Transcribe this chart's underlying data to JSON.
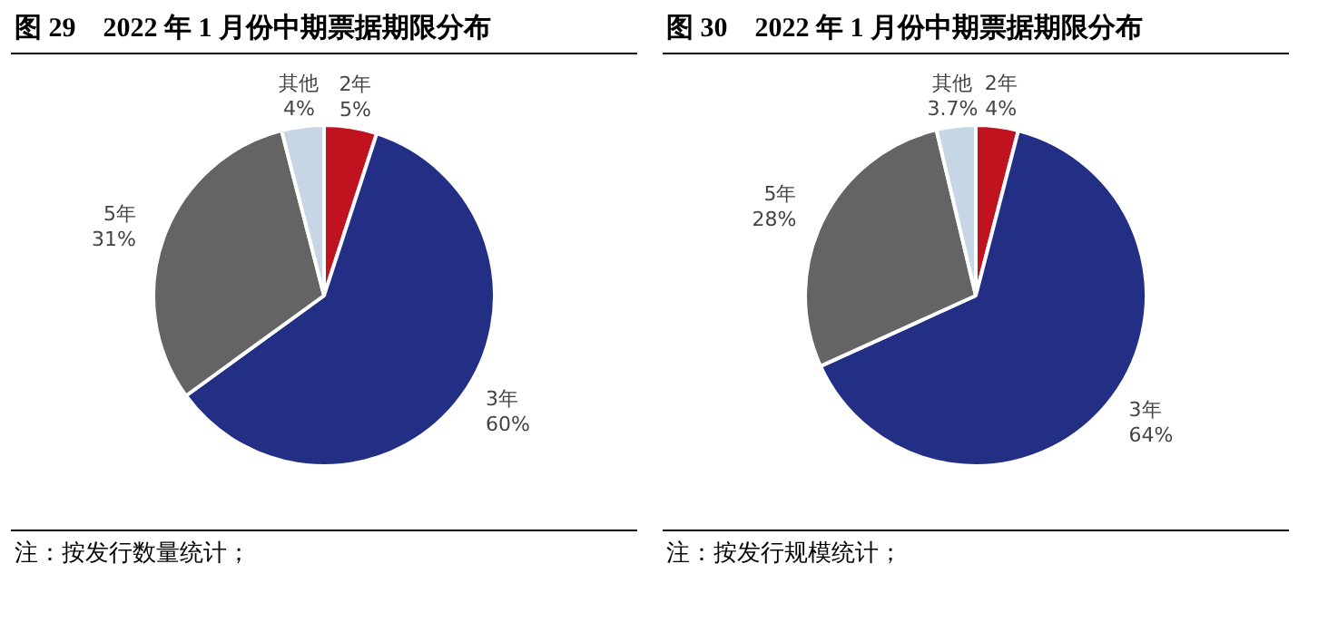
{
  "chart_data": [
    {
      "type": "pie",
      "title": "图 29　2022 年 1 月份中期票据期限分布",
      "categories": [
        "2年",
        "3年",
        "5年",
        "其他"
      ],
      "values": [
        5,
        60,
        31,
        4
      ],
      "colors": [
        "#c0121f",
        "#232f85",
        "#646464",
        "#c6d6e4"
      ],
      "value_labels": [
        "5%",
        "60%",
        "31%",
        "4%"
      ],
      "annotations": [
        "注：按发行数量统计；"
      ]
    },
    {
      "type": "pie",
      "title": "图 30　2022 年 1 月份中期票据期限分布",
      "categories": [
        "2年",
        "3年",
        "5年",
        "其他"
      ],
      "values": [
        4,
        64,
        28,
        3.7
      ],
      "colors": [
        "#c0121f",
        "#232f85",
        "#646464",
        "#c6d6e4"
      ],
      "value_labels": [
        "4%",
        "64%",
        "28%",
        "3.7%"
      ],
      "annotations": [
        "注：按发行规模统计；"
      ]
    }
  ]
}
